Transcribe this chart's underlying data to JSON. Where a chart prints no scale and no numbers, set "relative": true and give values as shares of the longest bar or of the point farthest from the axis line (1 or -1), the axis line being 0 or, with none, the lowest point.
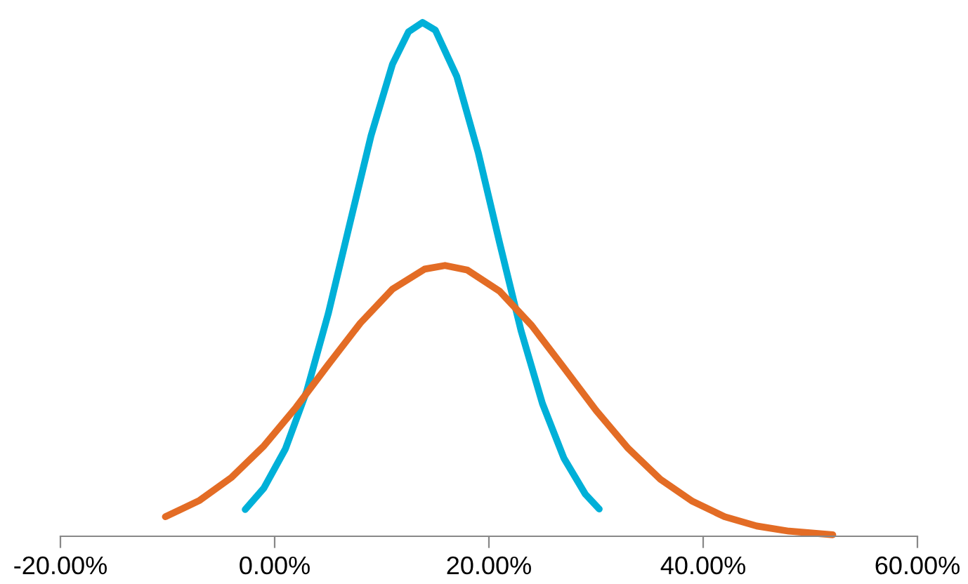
{
  "chart_data": {
    "type": "line",
    "relative": true,
    "xlim": [
      -20,
      60
    ],
    "xticks": [
      {
        "value": -20,
        "label": "-20.00%"
      },
      {
        "value": 0,
        "label": "0.00%"
      },
      {
        "value": 20,
        "label": "20.00%"
      },
      {
        "value": 40,
        "label": "40.00%"
      },
      {
        "value": 60,
        "label": "60.00%"
      }
    ],
    "tick_labels": "x",
    "grid": false,
    "marker": "none",
    "line_style": "solid",
    "series": [
      {
        "color": "#00b0d8",
        "x": [
          -2.75,
          -1,
          1,
          3,
          5,
          7,
          9,
          11,
          12.5,
          13.8,
          15,
          17,
          19,
          21,
          23,
          25,
          27,
          29,
          30.3
        ],
        "values": [
          0.052,
          0.094,
          0.17,
          0.283,
          0.433,
          0.607,
          0.78,
          0.919,
          0.982,
          1,
          0.985,
          0.895,
          0.747,
          0.571,
          0.4,
          0.258,
          0.152,
          0.082,
          0.053
        ]
      },
      {
        "color": "#e36c25",
        "x": [
          -10.2,
          -7,
          -4,
          -1,
          2,
          5,
          8,
          11,
          14,
          15.9,
          18,
          21,
          24,
          27,
          30,
          33,
          36,
          39,
          42,
          45,
          48,
          52.1
        ],
        "values": [
          0.038,
          0.07,
          0.115,
          0.176,
          0.251,
          0.334,
          0.415,
          0.481,
          0.52,
          0.527,
          0.518,
          0.477,
          0.41,
          0.328,
          0.245,
          0.171,
          0.111,
          0.068,
          0.038,
          0.02,
          0.01,
          0.003
        ]
      }
    ]
  }
}
